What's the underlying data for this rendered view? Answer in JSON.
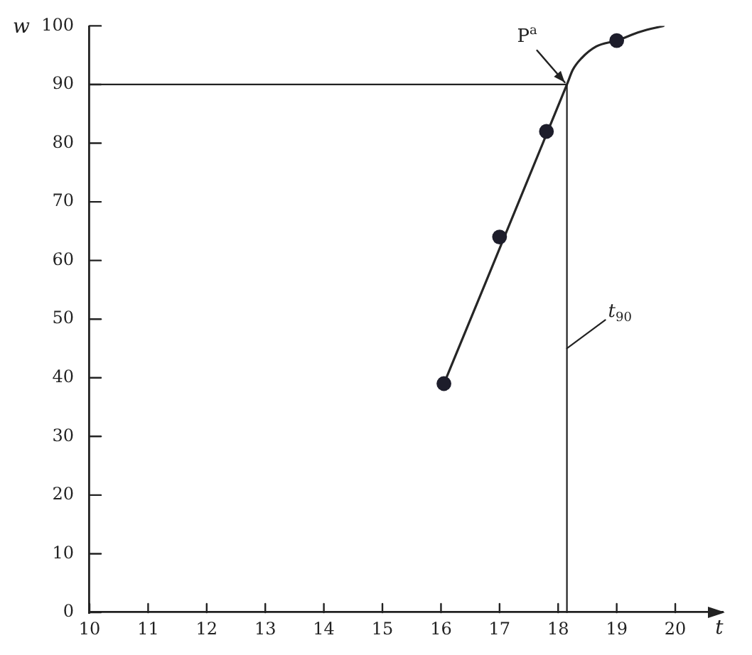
{
  "chart_data": {
    "type": "scatter",
    "xlabel": "t",
    "ylabel": "w",
    "xlim": [
      10,
      20.8
    ],
    "xticks": [
      10,
      11,
      12,
      13,
      14,
      15,
      16,
      17,
      18,
      19,
      20
    ],
    "ylim": [
      0,
      100
    ],
    "yticks": [
      0,
      10,
      20,
      30,
      40,
      50,
      60,
      70,
      80,
      90,
      100
    ],
    "grid": false,
    "marker": "circle",
    "series": [
      {
        "type": "scatter",
        "color": "#1d1d2b",
        "x": [
          16.05,
          17.0,
          17.8,
          19.0
        ],
        "values": [
          39,
          64,
          82,
          97.5
        ]
      },
      {
        "type": "line",
        "color": "#262626",
        "marker": "none",
        "x": [
          16.05,
          18.15,
          18.25,
          18.4,
          18.65,
          19.0,
          19.4,
          19.8
        ],
        "values": [
          39,
          90,
          92.5,
          94.5,
          96.5,
          97.5,
          99,
          100
        ]
      }
    ],
    "ref_lines": [
      {
        "axis": "x",
        "value": 18.15,
        "label": "t$_{90}$"
      },
      {
        "axis": "y",
        "value": 90
      }
    ],
    "annotations": [
      {
        "text": "P$^{a}$",
        "x": 18.15,
        "y": 90
      }
    ]
  }
}
